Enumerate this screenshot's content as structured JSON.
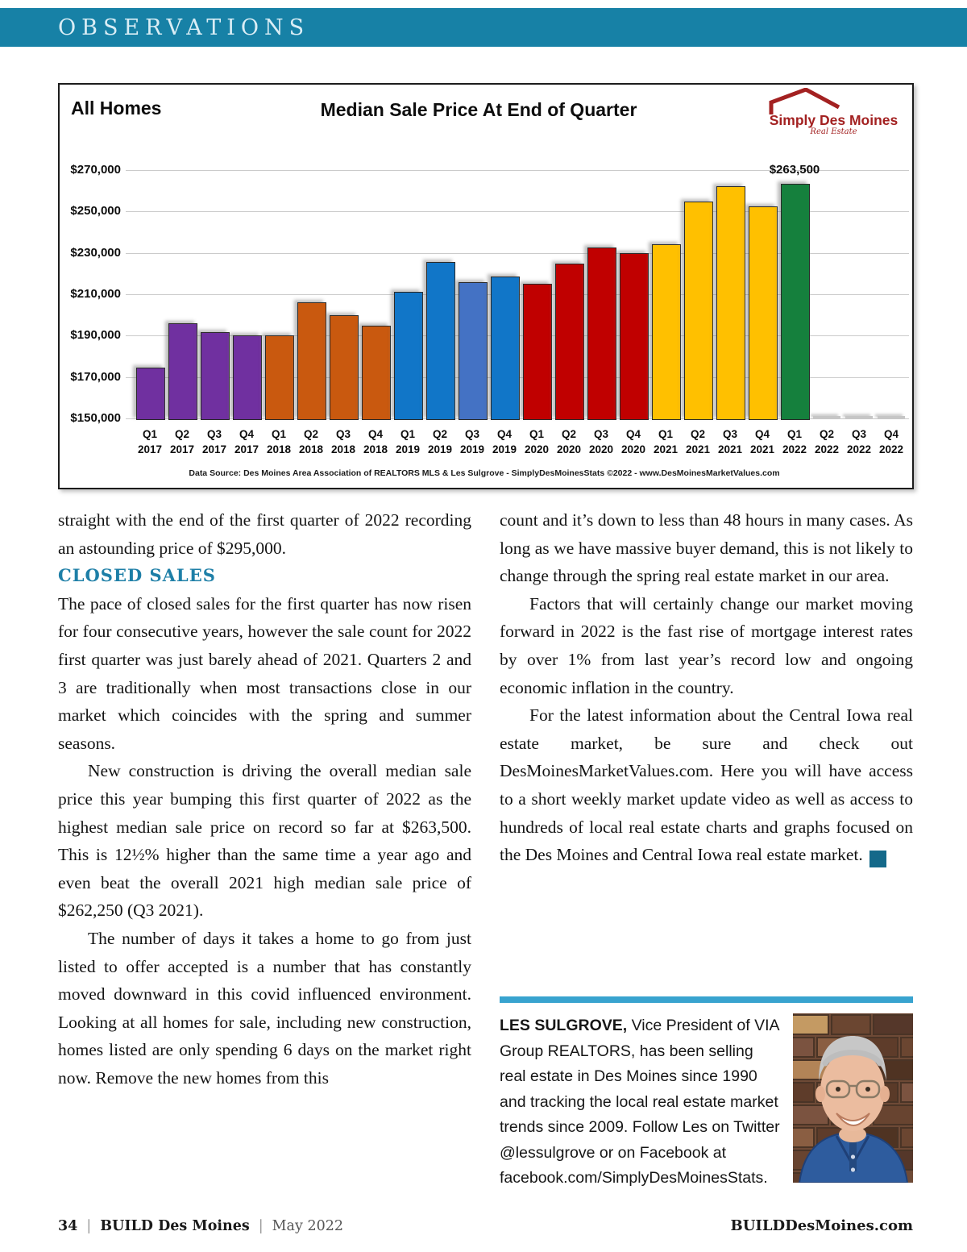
{
  "masthead": {
    "title": "OBSERVATIONS"
  },
  "colors": {
    "masthead_teal": "#1781A6",
    "heading_teal": "#1E7FA7",
    "rule_teal": "#38A3CF",
    "endmark_teal": "#14698A",
    "logo_red": "#A32121"
  },
  "chart": {
    "label": "All Homes",
    "title": "Median Sale Price At End of Quarter",
    "logo": {
      "brand": "Simply Des Moines",
      "tagline": "Real Estate"
    },
    "source": "Data Source: Des Moines Area Association of REALTORS MLS & Les Sulgrove - SimplyDesMoinesStats ©2022 - www.DesMoinesMarketValues.com",
    "chart_data": {
      "type": "bar",
      "title": "Median Sale Price At End of Quarter",
      "categories": [
        "Q1 2017",
        "Q2 2017",
        "Q3 2017",
        "Q4 2017",
        "Q1 2018",
        "Q2 2018",
        "Q3 2018",
        "Q4 2018",
        "Q1 2019",
        "Q2 2019",
        "Q3 2019",
        "Q4 2019",
        "Q1 2020",
        "Q2 2020",
        "Q3 2020",
        "Q4 2020",
        "Q1 2021",
        "Q2 2021",
        "Q3 2021",
        "Q4 2021",
        "Q1 2022",
        "Q2 2022",
        "Q3 2022",
        "Q4 2022"
      ],
      "values": [
        174500,
        196000,
        191500,
        190000,
        190000,
        206000,
        200000,
        195000,
        211000,
        225500,
        216000,
        218500,
        215000,
        225000,
        232500,
        230000,
        234000,
        255000,
        262250,
        252500,
        263500,
        null,
        null,
        null
      ],
      "bar_colors": [
        "#7030A0",
        "#7030A0",
        "#7030A0",
        "#7030A0",
        "#C9590F",
        "#C9590F",
        "#C9590F",
        "#C9590F",
        "#1176C8",
        "#1176C8",
        "#4472C4",
        "#1176C8",
        "#C00000",
        "#C00000",
        "#C00000",
        "#C00000",
        "#FFC000",
        "#FFC000",
        "#FFC000",
        "#FFC000",
        "#15803D",
        null,
        null,
        null
      ],
      "no_data_color": "#C6C6C6",
      "xlabel": "",
      "ylabel": "",
      "ylim": [
        150000,
        270000
      ],
      "ytick_step": 20000,
      "ytick_labels": [
        "$150,000",
        "$170,000",
        "$190,000",
        "$210,000",
        "$230,000",
        "$250,000",
        "$270,000"
      ],
      "data_labels": [
        {
          "index": 20,
          "text": "$263,500"
        }
      ],
      "grid": true,
      "legend": false
    }
  },
  "article": {
    "left": {
      "p1": "straight with the end of the first quarter of 2022 recording an astounding price of $295,000.",
      "heading": "CLOSED SALES",
      "p2": "The pace of closed sales for the first quarter has now risen for four consecutive years, however the sale count for 2022 first quarter was just barely ahead of 2021. Quarters 2 and 3 are traditionally when most transactions close in our market which coincides with the spring and summer seasons.",
      "p3": "New construction is driving the overall median sale price this year bumping this first quarter of 2022 as the highest median sale price on record so far at $263,500. This is 12½% higher than the same time a year ago and even beat the overall 2021 high median sale price of $262,250 (Q3 2021).",
      "p4": "The number of days it takes a home to go from just listed to offer accepted is a number that has constantly moved downward in this covid influenced environment. Looking at all homes for sale, including new construction, homes listed are only spending 6 days on the market right now. Remove the new homes from this"
    },
    "right": {
      "p1": "count and it’s down to less than 48 hours in many cases. As long as we have massive buyer demand, this is not likely to change through the spring real estate market in our area.",
      "p2": "Factors that will certainly change our market moving forward in 2022 is the fast rise of mortgage interest rates by over 1% from last year’s record low and ongoing economic inflation in the country.",
      "p3": "For the latest information about the Central Iowa real estate market, be sure and check out DesMoinesMarketValues.com. Here you will have access to a short weekly market update video as well as access to hundreds of local real estate charts and graphs focused on the Des Moines and Central Iowa real estate market.",
      "end_mark": "B"
    }
  },
  "bio": {
    "name": "LES SULGROVE,",
    "text": " Vice President of VIA Group REALTORS, has been selling real estate in Des Moines since 1990 and tracking the local real estate market trends since 2009. Follow Les on Twitter @lessulgrove or on Facebook at facebook.com/SimplyDesMoinesStats."
  },
  "footer": {
    "page_number": "34",
    "separator": "|",
    "magazine": "BUILD Des Moines",
    "issue": "May 2022",
    "website": "BUILDDesMoines.com"
  }
}
